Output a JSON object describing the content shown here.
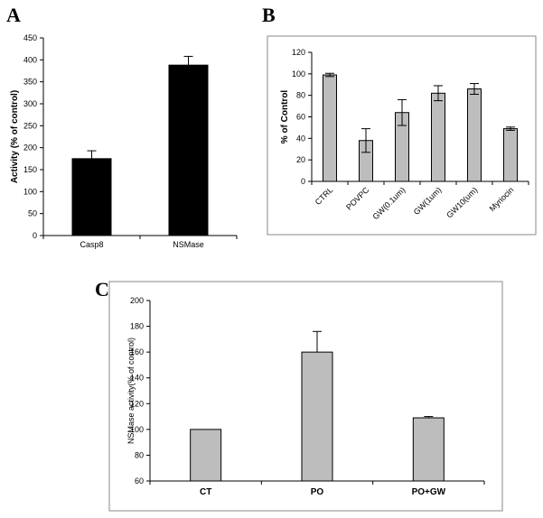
{
  "panels": {
    "a": "A",
    "b": "B",
    "c": "C"
  },
  "chart_data": [
    {
      "id": "A",
      "type": "bar",
      "title": "",
      "categories": [
        "Casp8",
        "NSMase"
      ],
      "values": [
        175,
        388
      ],
      "errors": [
        18,
        20
      ],
      "xlabel": "",
      "ylabel": "Activity (% of control)",
      "ylim": [
        0,
        450
      ],
      "yticks": [
        0,
        50,
        100,
        150,
        200,
        250,
        300,
        350,
        400,
        450
      ],
      "bar_color": "#000000",
      "grid": false
    },
    {
      "id": "B",
      "type": "bar",
      "title": "",
      "categories": [
        "CTRL",
        "POVPC",
        "GW(0.1um)",
        "GW(1um)",
        "GW10(um)",
        "Myriocin"
      ],
      "values": [
        99,
        38,
        64,
        82,
        86,
        49
      ],
      "errors": [
        1.5,
        11,
        12,
        7,
        5,
        1.5
      ],
      "xlabel": "",
      "ylabel": "% of Control",
      "ylim": [
        0,
        120
      ],
      "yticks": [
        0,
        20,
        40,
        60,
        80,
        100,
        120
      ],
      "bar_color": "#bdbdbd",
      "grid": false
    },
    {
      "id": "C",
      "type": "bar",
      "title": "",
      "categories": [
        "CT",
        "PO",
        "PO+GW"
      ],
      "values": [
        100,
        160,
        109
      ],
      "errors": [
        0,
        16,
        1
      ],
      "xlabel": "",
      "ylabel": "NSMase activity(% of control)",
      "ylim": [
        60,
        200
      ],
      "yticks": [
        60,
        80,
        100,
        120,
        140,
        160,
        180,
        200
      ],
      "bar_color": "#bdbdbd",
      "grid": false
    }
  ]
}
